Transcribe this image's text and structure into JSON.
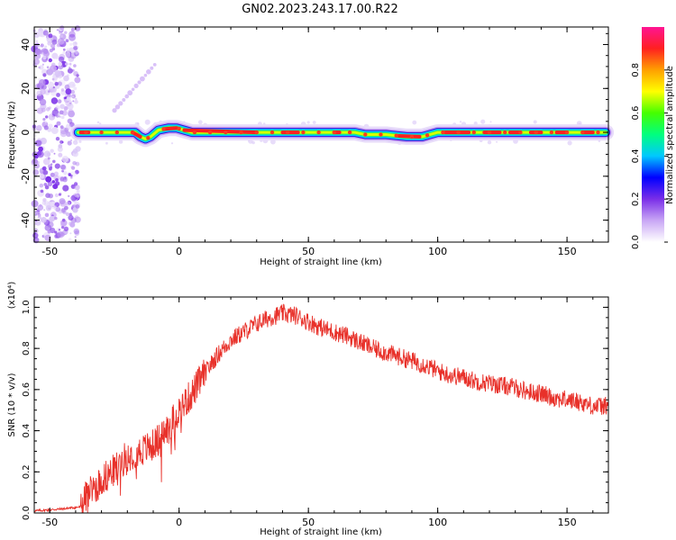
{
  "title": "GN02.2023.243.17.00.R22",
  "chart_data": [
    {
      "type": "heatmap",
      "xlabel": "Height of straight line (km)",
      "ylabel": "Frequency (Hz)",
      "xlim": [
        -56,
        166
      ],
      "ylim": [
        -50,
        48
      ],
      "x_ticks": [
        -50,
        0,
        50,
        100,
        150
      ],
      "y_ticks": [
        -40,
        -20,
        0,
        20,
        40
      ],
      "colorbar": {
        "label": "Normalized spectral amplitude",
        "range": [
          0,
          1
        ],
        "ticks": [
          0.0,
          0.2,
          0.4,
          0.6,
          0.8
        ],
        "colors": [
          "#ffffff",
          "#c9a7f5",
          "#7a2ee8",
          "#0000ff",
          "#00c8ff",
          "#00ff7f",
          "#44ff00",
          "#ffff00",
          "#ffa000",
          "#ff2020",
          "#ff1493"
        ]
      },
      "ridge": {
        "x": [
          -39,
          -30,
          -20,
          -17,
          -15,
          -13,
          -11,
          -8,
          -4,
          -1,
          5,
          20,
          40,
          60,
          68,
          72,
          80,
          88,
          94,
          100,
          120,
          140,
          165
        ],
        "y": [
          0,
          0,
          0,
          0,
          -2,
          -3,
          -2,
          1,
          2,
          2,
          0,
          0,
          0,
          0,
          0,
          -1,
          -1,
          -2,
          -2,
          0,
          0,
          0,
          0
        ]
      },
      "noise_region_x": [
        -56,
        -39
      ]
    },
    {
      "type": "line",
      "xlabel": "Height of straight line (km)",
      "ylabel": "SNR (10 * v/v)",
      "y_multiplier": "(x10⁴)",
      "xlim": [
        -56,
        166
      ],
      "ylim": [
        0,
        1.05
      ],
      "x_ticks": [
        -50,
        0,
        50,
        100,
        150
      ],
      "y_ticks": [
        0.0,
        0.2,
        0.4,
        0.6,
        0.8,
        1.0
      ],
      "color": "#e8312a",
      "series": [
        {
          "x": [
            -56,
            -45,
            -38,
            -36,
            -30,
            -25,
            -20,
            -15,
            -10,
            -5,
            0,
            5,
            10,
            15,
            20,
            25,
            30,
            35,
            40,
            45,
            50,
            55,
            60,
            65,
            70,
            75,
            80,
            85,
            90,
            95,
            100,
            105,
            110,
            115,
            120,
            125,
            130,
            135,
            140,
            145,
            150,
            155,
            160,
            166
          ],
          "values": [
            0.01,
            0.02,
            0.03,
            0.08,
            0.16,
            0.21,
            0.28,
            0.3,
            0.33,
            0.4,
            0.5,
            0.58,
            0.68,
            0.77,
            0.84,
            0.88,
            0.92,
            0.95,
            0.97,
            0.96,
            0.93,
            0.9,
            0.88,
            0.86,
            0.83,
            0.8,
            0.78,
            0.76,
            0.74,
            0.72,
            0.69,
            0.67,
            0.66,
            0.64,
            0.63,
            0.62,
            0.61,
            0.59,
            0.58,
            0.56,
            0.55,
            0.54,
            0.52,
            0.52
          ]
        }
      ]
    }
  ]
}
